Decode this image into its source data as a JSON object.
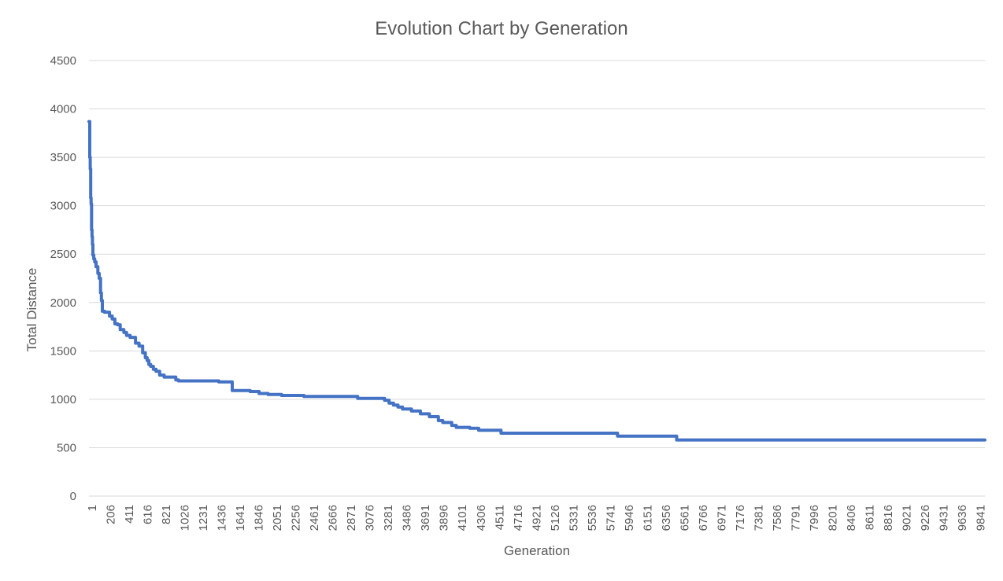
{
  "chart_data": {
    "type": "line",
    "title": "Evolution Chart by Generation",
    "xlabel": "Generation",
    "ylabel": "Total Distance",
    "ylim": [
      0,
      4500
    ],
    "yticks": [
      0,
      500,
      1000,
      1500,
      2000,
      2500,
      3000,
      3500,
      4000,
      4500
    ],
    "xlim": [
      1,
      10000
    ],
    "xticks": [
      "1",
      "206",
      "411",
      "616",
      "821",
      "1026",
      "1231",
      "1436",
      "1641",
      "1846",
      "2051",
      "2256",
      "2461",
      "2666",
      "2871",
      "3076",
      "3281",
      "3486",
      "3691",
      "3896",
      "4101",
      "4306",
      "4511",
      "4716",
      "4921",
      "5126",
      "5331",
      "5536",
      "5741",
      "5946",
      "6151",
      "6356",
      "6561",
      "6766",
      "6971",
      "7176",
      "7381",
      "7586",
      "7791",
      "7996",
      "8201",
      "8406",
      "8611",
      "8816",
      "9021",
      "9226",
      "9431",
      "9636",
      "9841"
    ],
    "grid": true,
    "line_color": "#4472c4",
    "series": [
      {
        "x": [
          1,
          10,
          15,
          20,
          25,
          30,
          35,
          40,
          45,
          55,
          65,
          80,
          100,
          115,
          130,
          140,
          150,
          160,
          175,
          190,
          230,
          260,
          290,
          320,
          350,
          390,
          420,
          460,
          520,
          560,
          600,
          630,
          650,
          670,
          690,
          720,
          750,
          790,
          840,
          900,
          970,
          1000,
          1200,
          1450,
          1550,
          1600,
          1700,
          1800,
          1900,
          2000,
          2150,
          2250,
          2400,
          2600,
          2800,
          3000,
          3200,
          3300,
          3350,
          3400,
          3450,
          3500,
          3600,
          3700,
          3800,
          3900,
          3950,
          4050,
          4100,
          4150,
          4250,
          4350,
          4550,
          4600,
          5000,
          5500,
          5900,
          6000,
          6500,
          6560,
          6600,
          7000,
          8000,
          9000,
          10000
        ],
        "y": [
          3870,
          3500,
          3380,
          3080,
          3020,
          2750,
          2680,
          2600,
          2490,
          2450,
          2420,
          2370,
          2300,
          2250,
          2100,
          2020,
          1910,
          1910,
          1900,
          1900,
          1860,
          1830,
          1780,
          1770,
          1720,
          1690,
          1660,
          1640,
          1580,
          1550,
          1480,
          1430,
          1400,
          1360,
          1340,
          1310,
          1290,
          1250,
          1230,
          1230,
          1200,
          1190,
          1190,
          1180,
          1180,
          1090,
          1090,
          1080,
          1060,
          1050,
          1040,
          1040,
          1030,
          1030,
          1030,
          1010,
          1010,
          990,
          960,
          940,
          920,
          900,
          880,
          850,
          820,
          780,
          760,
          730,
          710,
          710,
          700,
          680,
          680,
          650,
          650,
          650,
          620,
          620,
          620,
          580,
          580,
          580,
          580,
          580,
          580
        ]
      }
    ]
  }
}
